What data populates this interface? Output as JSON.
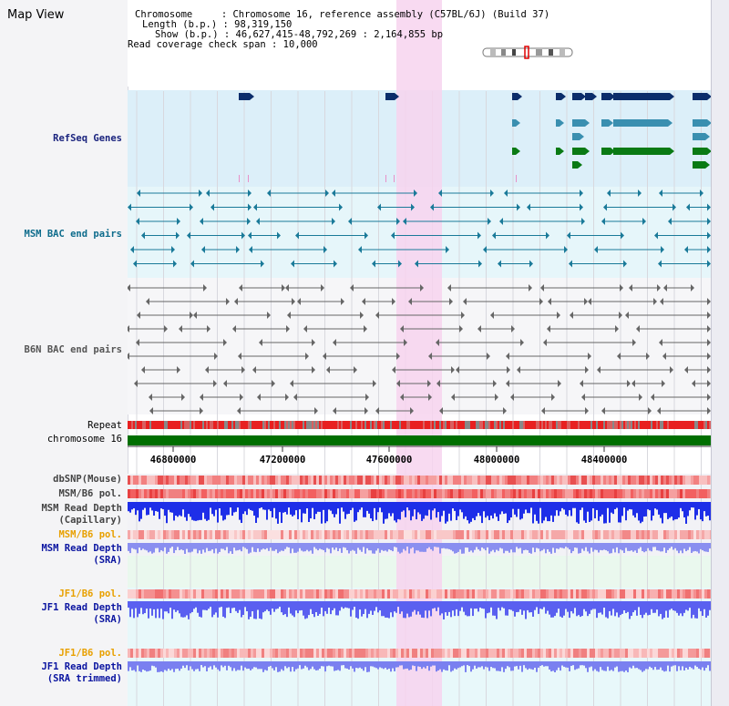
{
  "view_title": "Map View",
  "info": {
    "chromosome_line": "Chromosome     : Chromosome 16, reference assembly (C57BL/6J) (Build 37)",
    "length_line": "Length (b.p.) : 98,319,150",
    "show_line": "Show (b.p.) : 46,627,415-48,792,269 : 2,164,855 bp",
    "coverage_line": "Read coverage check span : 10,000"
  },
  "tracks": {
    "refseq": "RefSeq Genes",
    "msm_bac": "MSM BAC end pairs",
    "b6n_bac": "B6N BAC end pairs",
    "repeat": "Repeat",
    "chromosome": "chromosome 16",
    "dbsnp": "dbSNP(Mouse)",
    "msm_b6_pol": "MSM/B6 pol.",
    "msm_read_cap_1": "MSM Read Depth",
    "msm_read_cap_2": "(Capillary)",
    "msm_b6_pol_2": "MSM/B6 pol.",
    "msm_read_sra_1": "MSM Read Depth",
    "msm_read_sra_2": "(SRA)",
    "jf1_b6_pol": "JF1/B6 pol.",
    "jf1_read_sra_1": "JF1 Read Depth",
    "jf1_read_sra_2": "(SRA)",
    "jf1_b6_pol_2": "JF1/B6 pol.",
    "jf1_read_trim_1": "JF1 Read Depth",
    "jf1_read_trim_2": "(SRA trimmed)"
  },
  "axis": {
    "ticks": [
      "46800000",
      "47200000",
      "47600000",
      "48000000",
      "48400000"
    ]
  },
  "colors": {
    "refseq_label": "#1a237e",
    "msm_label": "#0e6c8c",
    "b6n_label": "#555555",
    "pol_label_orange": "#e8a000",
    "read_label_blue": "#0a14a0",
    "highlight": "#f7d4ef",
    "refseq_bg": "#dceff9",
    "msm_bg": "#e6f6fa",
    "chrom_green": "#006f00"
  }
}
